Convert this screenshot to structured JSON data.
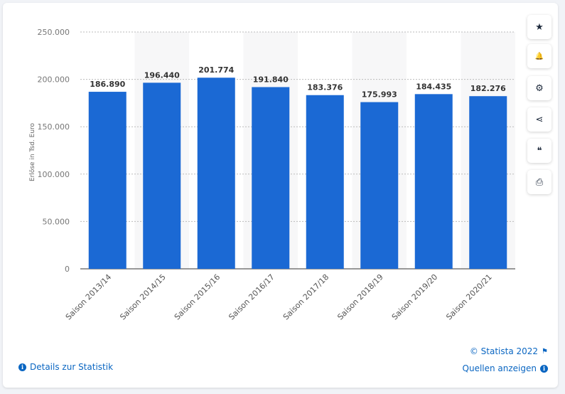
{
  "chart_data": {
    "type": "bar",
    "categories": [
      "Saison 2013/14",
      "Saison 2014/15",
      "Saison 2015/16",
      "Saison 2016/17",
      "Saison 2017/18",
      "Saison 2018/19",
      "Saison 2019/20",
      "Saison 2020/21"
    ],
    "values": [
      186890,
      196440,
      201774,
      191840,
      183376,
      175993,
      184435,
      182276
    ],
    "value_labels": [
      "186.890",
      "196.440",
      "201.774",
      "191.840",
      "183.376",
      "175.993",
      "184.435",
      "182.276"
    ],
    "ylabel": "Erlöse in Tsd. Euro",
    "ylim": [
      0,
      250000
    ],
    "yticks": [
      0,
      50000,
      100000,
      150000,
      200000,
      250000
    ],
    "ytick_labels": [
      "0",
      "50.000",
      "100.000",
      "150.000",
      "200.000",
      "250.000"
    ],
    "bar_color": "#1b69d4",
    "grid": true
  },
  "sidebar": [
    {
      "icon": "star-icon",
      "glyph": "★"
    },
    {
      "icon": "bell-icon",
      "glyph": "🔔"
    },
    {
      "icon": "gear-icon",
      "glyph": "⚙"
    },
    {
      "icon": "share-icon",
      "glyph": "⋖"
    },
    {
      "icon": "quote-icon",
      "glyph": "❝"
    },
    {
      "icon": "print-icon",
      "glyph": "⎙"
    }
  ],
  "footer": {
    "details": "Details zur Statistik",
    "copyright": "© Statista 2022",
    "sources": "Quellen anzeigen"
  }
}
